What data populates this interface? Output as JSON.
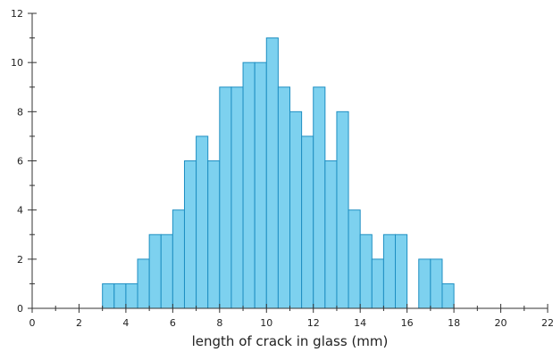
{
  "chart_data": {
    "type": "bar",
    "title": "",
    "xlabel": "length of crack in glass (mm)",
    "ylabel": "",
    "bin_width": 0.5,
    "bins": [
      {
        "x0": 3.0,
        "count": 1
      },
      {
        "x0": 3.5,
        "count": 1
      },
      {
        "x0": 4.0,
        "count": 1
      },
      {
        "x0": 4.5,
        "count": 2
      },
      {
        "x0": 5.0,
        "count": 3
      },
      {
        "x0": 5.5,
        "count": 3
      },
      {
        "x0": 6.0,
        "count": 4
      },
      {
        "x0": 6.5,
        "count": 6
      },
      {
        "x0": 7.0,
        "count": 7
      },
      {
        "x0": 7.5,
        "count": 6
      },
      {
        "x0": 8.0,
        "count": 9
      },
      {
        "x0": 8.5,
        "count": 9
      },
      {
        "x0": 9.0,
        "count": 10
      },
      {
        "x0": 9.5,
        "count": 10
      },
      {
        "x0": 10.0,
        "count": 11
      },
      {
        "x0": 10.5,
        "count": 9
      },
      {
        "x0": 11.0,
        "count": 8
      },
      {
        "x0": 11.5,
        "count": 7
      },
      {
        "x0": 12.0,
        "count": 9
      },
      {
        "x0": 12.5,
        "count": 6
      },
      {
        "x0": 13.0,
        "count": 8
      },
      {
        "x0": 13.5,
        "count": 4
      },
      {
        "x0": 14.0,
        "count": 3
      },
      {
        "x0": 14.5,
        "count": 2
      },
      {
        "x0": 15.0,
        "count": 3
      },
      {
        "x0": 15.5,
        "count": 3
      },
      {
        "x0": 16.5,
        "count": 2
      },
      {
        "x0": 17.0,
        "count": 2
      },
      {
        "x0": 17.5,
        "count": 1
      }
    ],
    "xlim": [
      0,
      22
    ],
    "ylim": [
      0,
      12
    ],
    "x_ticks": [
      "0",
      "2",
      "4",
      "6",
      "8",
      "10",
      "12",
      "14",
      "16",
      "18",
      "20",
      "22"
    ],
    "x_tick_values": [
      0,
      2,
      4,
      6,
      8,
      10,
      12,
      14,
      16,
      18,
      20,
      22
    ],
    "x_minor_tick_values": [
      1,
      3,
      5,
      7,
      9,
      11,
      13,
      15,
      17,
      19,
      21
    ],
    "y_ticks": [
      "0",
      "2",
      "4",
      "6",
      "8",
      "10",
      "12"
    ],
    "y_tick_values": [
      0,
      2,
      4,
      6,
      8,
      10,
      12
    ],
    "y_minor_tick_values": [
      1,
      3,
      5,
      7,
      9,
      11
    ],
    "grid": false,
    "legend": "none",
    "colors": {
      "bar_fill": "#7dd1ef",
      "bar_stroke": "#1f8fc2",
      "axis": "#333333"
    }
  }
}
